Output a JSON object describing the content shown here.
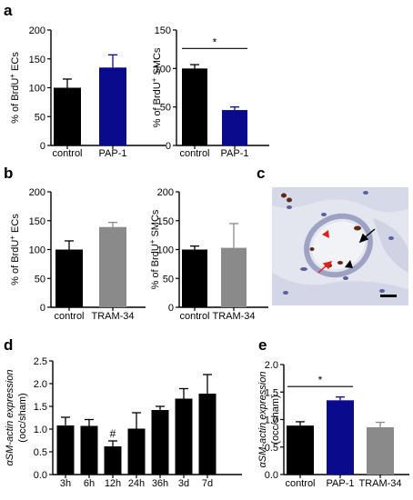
{
  "panel_labels": [
    "a",
    "b",
    "c",
    "d",
    "e"
  ],
  "colors": {
    "black": "#000000",
    "blue": "#0a0a8c",
    "gray": "#8a8a8a",
    "micrograph_bg": "#dfe3ef"
  },
  "chart_data": [
    {
      "id": "a-left",
      "panel": "a",
      "type": "bar",
      "categories": [
        "control",
        "PAP-1"
      ],
      "values": [
        100,
        135
      ],
      "errors": [
        15,
        22
      ],
      "bar_colors": [
        "#000000",
        "#0a0a8c"
      ],
      "ylabel_main": "% of BrdU",
      "ylabel_sup": "+",
      "ylabel_tail": " ECs",
      "ylim": [
        0,
        200
      ],
      "yticks": [
        0,
        50,
        100,
        150,
        200
      ],
      "annotations": []
    },
    {
      "id": "a-right",
      "panel": "a",
      "type": "bar",
      "categories": [
        "control",
        "PAP-1"
      ],
      "values": [
        100,
        46
      ],
      "errors": [
        5,
        4
      ],
      "bar_colors": [
        "#000000",
        "#0a0a8c"
      ],
      "ylabel_main": "% of BrdU",
      "ylabel_sup": "+",
      "ylabel_tail": " SMCs",
      "ylim": [
        0,
        150
      ],
      "yticks": [
        0,
        50,
        100,
        150
      ],
      "annotations": [
        {
          "text": "*",
          "from": 0,
          "to": 1,
          "y": 126
        }
      ]
    },
    {
      "id": "b-left",
      "panel": "b",
      "type": "bar",
      "categories": [
        "control",
        "TRAM-34"
      ],
      "values": [
        100,
        139
      ],
      "errors": [
        15,
        8
      ],
      "bar_colors": [
        "#000000",
        "#8a8a8a"
      ],
      "ylabel_main": "% of BrdU",
      "ylabel_sup": "+",
      "ylabel_tail": " ECs",
      "ylim": [
        0,
        200
      ],
      "yticks": [
        0,
        50,
        100,
        150,
        200
      ],
      "annotations": []
    },
    {
      "id": "b-right",
      "panel": "b",
      "type": "bar",
      "categories": [
        "control",
        "TRAM-34"
      ],
      "values": [
        100,
        103
      ],
      "errors": [
        6,
        42
      ],
      "bar_colors": [
        "#000000",
        "#8a8a8a"
      ],
      "ylabel_main": "% of BrdU",
      "ylabel_sup": "+",
      "ylabel_tail": " SMCs",
      "ylim": [
        0,
        200
      ],
      "yticks": [
        0,
        50,
        100,
        150,
        200
      ],
      "annotations": []
    },
    {
      "id": "d",
      "panel": "d",
      "type": "bar",
      "categories": [
        "3h",
        "6h",
        "12h",
        "24h",
        "36h",
        "3d",
        "7d"
      ],
      "values": [
        1.08,
        1.07,
        0.62,
        1.01,
        1.42,
        1.67,
        1.78
      ],
      "errors": [
        0.18,
        0.14,
        0.12,
        0.35,
        0.08,
        0.22,
        0.42
      ],
      "bar_colors": [
        "#000000",
        "#000000",
        "#000000",
        "#000000",
        "#000000",
        "#000000",
        "#000000"
      ],
      "ylabel_main": "αSM-actin expression",
      "ylabel_line2": "(occ/sham)",
      "ylim": [
        0,
        2.5
      ],
      "yticks": [
        "0.0",
        "0.5",
        "1.0",
        "1.5",
        "2.0",
        "2.5"
      ],
      "annotations": [
        {
          "text": "#",
          "over": 2
        }
      ]
    },
    {
      "id": "e",
      "panel": "e",
      "type": "bar",
      "categories": [
        "control",
        "PAP-1",
        "TRAM-34"
      ],
      "values": [
        0.89,
        1.35,
        0.86
      ],
      "errors": [
        0.07,
        0.06,
        0.09
      ],
      "bar_colors": [
        "#000000",
        "#0a0a8c",
        "#8a8a8a"
      ],
      "ylabel_main": "αSM-actin expression",
      "ylabel_line2": "(occ/sham)",
      "ylim": [
        0,
        2.0
      ],
      "yticks": [
        "0.0",
        "0.5",
        "1.0",
        "1.5",
        "2.0"
      ],
      "annotations": [
        {
          "text": "*",
          "from": 0,
          "to": 1,
          "y": 1.6
        }
      ]
    }
  ]
}
